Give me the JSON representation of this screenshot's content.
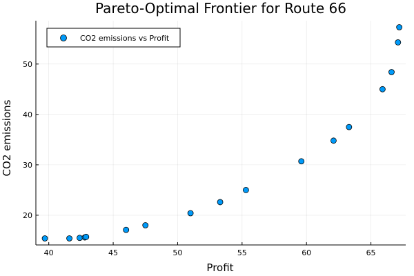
{
  "chart_data": {
    "type": "scatter",
    "title": "Pareto-Optimal Frontier for Route 66",
    "xlabel": "Profit",
    "ylabel": "CO2 emissions",
    "xlim": [
      39.0,
      67.7
    ],
    "ylim": [
      14.1,
      58.6
    ],
    "xticks": [
      40,
      45,
      50,
      55,
      60,
      65
    ],
    "yticks": [
      20,
      30,
      40,
      50
    ],
    "grid": true,
    "legend_position": "top-left",
    "series": [
      {
        "name": "CO2 emissions vs Profit",
        "color": "#009AF9",
        "points": [
          {
            "x": 39.7,
            "y": 15.4
          },
          {
            "x": 41.6,
            "y": 15.4
          },
          {
            "x": 42.4,
            "y": 15.5
          },
          {
            "x": 42.8,
            "y": 15.6
          },
          {
            "x": 42.9,
            "y": 15.7
          },
          {
            "x": 46.0,
            "y": 17.1
          },
          {
            "x": 47.5,
            "y": 18.0
          },
          {
            "x": 51.0,
            "y": 20.4
          },
          {
            "x": 53.3,
            "y": 22.6
          },
          {
            "x": 55.3,
            "y": 25.0
          },
          {
            "x": 59.6,
            "y": 30.7
          },
          {
            "x": 62.1,
            "y": 34.8
          },
          {
            "x": 63.3,
            "y": 37.5
          },
          {
            "x": 65.9,
            "y": 45.0
          },
          {
            "x": 66.6,
            "y": 48.4
          },
          {
            "x": 67.1,
            "y": 54.3
          },
          {
            "x": 67.2,
            "y": 57.3
          }
        ]
      }
    ]
  }
}
